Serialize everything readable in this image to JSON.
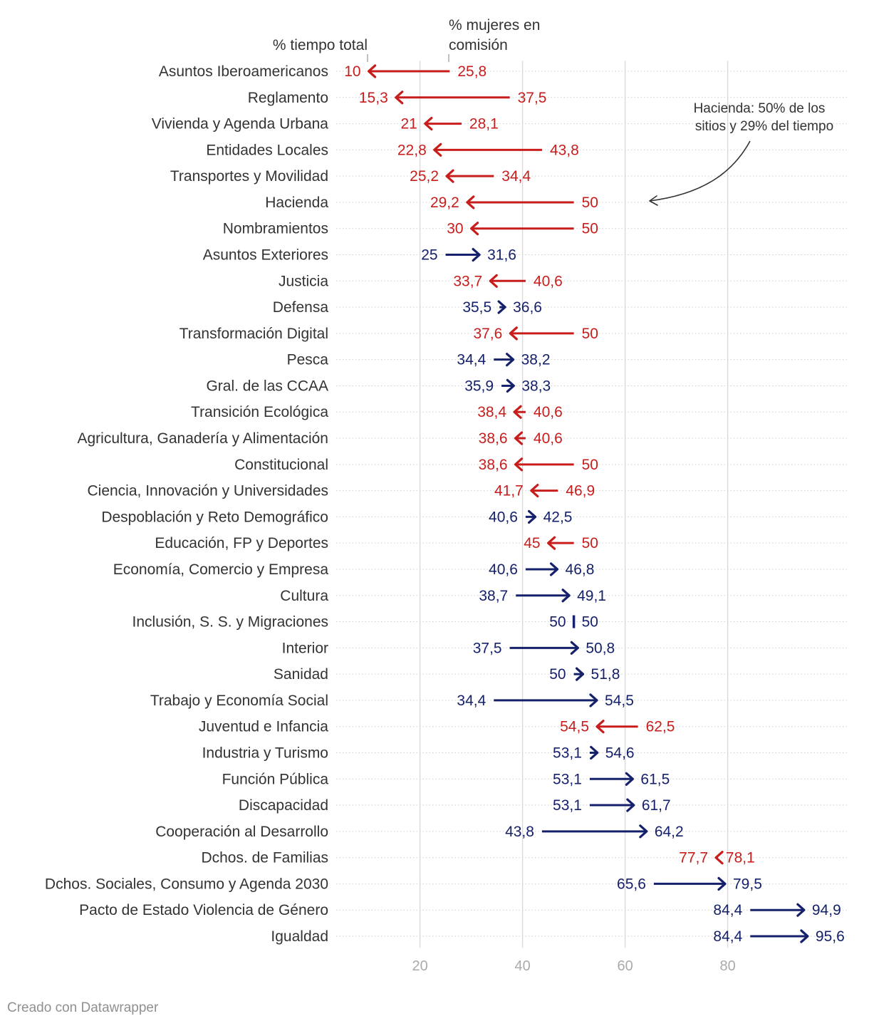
{
  "chart_data": {
    "type": "arrow-dot",
    "header": {
      "start_label": "% tiempo total",
      "end_label_line1": "% mujeres en",
      "end_label_line2": "comisión"
    },
    "annotation": {
      "line1": "Hacienda: 50% de los",
      "line2": "sitios y 29% del tiempo",
      "target": "Hacienda"
    },
    "x_axis": {
      "min": 0,
      "max": 100,
      "ticks": [
        20,
        40,
        60,
        80
      ]
    },
    "colors": {
      "decrease": "#c71e1d",
      "increase": "#15216b",
      "grid": "#d9d9d9",
      "tick_label": "#aaaaaa",
      "category_label": "#333333"
    },
    "rows": [
      {
        "category": "Asuntos Iberoamericanos",
        "start": 10,
        "end": 25.8,
        "start_label": "10",
        "end_label": "25,8",
        "direction": "down"
      },
      {
        "category": "Reglamento",
        "start": 15.3,
        "end": 37.5,
        "start_label": "15,3",
        "end_label": "37,5",
        "direction": "down"
      },
      {
        "category": "Vivienda y Agenda Urbana",
        "start": 21,
        "end": 28.1,
        "start_label": "21",
        "end_label": "28,1",
        "direction": "down"
      },
      {
        "category": "Entidades Locales",
        "start": 22.8,
        "end": 43.8,
        "start_label": "22,8",
        "end_label": "43,8",
        "direction": "down"
      },
      {
        "category": "Transportes y Movilidad",
        "start": 25.2,
        "end": 34.4,
        "start_label": "25,2",
        "end_label": "34,4",
        "direction": "down"
      },
      {
        "category": "Hacienda",
        "start": 29.2,
        "end": 50,
        "start_label": "29,2",
        "end_label": "50",
        "direction": "down"
      },
      {
        "category": "Nombramientos",
        "start": 30,
        "end": 50,
        "start_label": "30",
        "end_label": "50",
        "direction": "down"
      },
      {
        "category": "Asuntos Exteriores",
        "start": 25,
        "end": 31.6,
        "start_label": "25",
        "end_label": "31,6",
        "direction": "up"
      },
      {
        "category": "Justicia",
        "start": 33.7,
        "end": 40.6,
        "start_label": "33,7",
        "end_label": "40,6",
        "direction": "down"
      },
      {
        "category": "Defensa",
        "start": 35.5,
        "end": 36.6,
        "start_label": "35,5",
        "end_label": "36,6",
        "direction": "up"
      },
      {
        "category": "Transformación Digital",
        "start": 37.6,
        "end": 50,
        "start_label": "37,6",
        "end_label": "50",
        "direction": "down"
      },
      {
        "category": "Pesca",
        "start": 34.4,
        "end": 38.2,
        "start_label": "34,4",
        "end_label": "38,2",
        "direction": "up"
      },
      {
        "category": "Gral. de las CCAA",
        "start": 35.9,
        "end": 38.3,
        "start_label": "35,9",
        "end_label": "38,3",
        "direction": "up"
      },
      {
        "category": "Transición Ecológica",
        "start": 38.4,
        "end": 40.6,
        "start_label": "38,4",
        "end_label": "40,6",
        "direction": "down"
      },
      {
        "category": "Agricultura, Ganadería y Alimentación",
        "start": 38.6,
        "end": 40.6,
        "start_label": "38,6",
        "end_label": "40,6",
        "direction": "down"
      },
      {
        "category": "Constitucional",
        "start": 38.6,
        "end": 50,
        "start_label": "38,6",
        "end_label": "50",
        "direction": "down"
      },
      {
        "category": "Ciencia, Innovación y Universidades",
        "start": 41.7,
        "end": 46.9,
        "start_label": "41,7",
        "end_label": "46,9",
        "direction": "down"
      },
      {
        "category": "Despoblación y Reto Demográfico",
        "start": 40.6,
        "end": 42.5,
        "start_label": "40,6",
        "end_label": "42,5",
        "direction": "up"
      },
      {
        "category": "Educación, FP y Deportes",
        "start": 45,
        "end": 50,
        "start_label": "45",
        "end_label": "50",
        "direction": "down"
      },
      {
        "category": "Economía, Comercio y Empresa",
        "start": 40.6,
        "end": 46.8,
        "start_label": "40,6",
        "end_label": "46,8",
        "direction": "up"
      },
      {
        "category": "Cultura",
        "start": 38.7,
        "end": 49.1,
        "start_label": "38,7",
        "end_label": "49,1",
        "direction": "up"
      },
      {
        "category": "Inclusión, S. S. y Migraciones",
        "start": 50,
        "end": 50,
        "start_label": "50",
        "end_label": "50",
        "direction": "equal"
      },
      {
        "category": "Interior",
        "start": 37.5,
        "end": 50.8,
        "start_label": "37,5",
        "end_label": "50,8",
        "direction": "up"
      },
      {
        "category": "Sanidad",
        "start": 50,
        "end": 51.8,
        "start_label": "50",
        "end_label": "51,8",
        "direction": "up"
      },
      {
        "category": "Trabajo y Economía Social",
        "start": 34.4,
        "end": 54.5,
        "start_label": "34,4",
        "end_label": "54,5",
        "direction": "up"
      },
      {
        "category": "Juventud e Infancia",
        "start": 54.5,
        "end": 62.5,
        "start_label": "54,5",
        "end_label": "62,5",
        "direction": "down"
      },
      {
        "category": "Industria y Turismo",
        "start": 53.1,
        "end": 54.6,
        "start_label": "53,1",
        "end_label": "54,6",
        "direction": "up"
      },
      {
        "category": "Función Pública",
        "start": 53.1,
        "end": 61.5,
        "start_label": "53,1",
        "end_label": "61,5",
        "direction": "up"
      },
      {
        "category": "Discapacidad",
        "start": 53.1,
        "end": 61.7,
        "start_label": "53,1",
        "end_label": "61,7",
        "direction": "up"
      },
      {
        "category": "Cooperación al Desarrollo",
        "start": 43.8,
        "end": 64.2,
        "start_label": "43,8",
        "end_label": "64,2",
        "direction": "up"
      },
      {
        "category": "Dchos. de Familias",
        "start": 77.7,
        "end": 78.1,
        "start_label": "77,7",
        "end_label": "78,1",
        "direction": "down"
      },
      {
        "category": "Dchos. Sociales, Consumo y Agenda 2030",
        "start": 65.6,
        "end": 79.5,
        "start_label": "65,6",
        "end_label": "79,5",
        "direction": "up"
      },
      {
        "category": "Pacto de Estado Violencia de Género",
        "start": 84.4,
        "end": 94.9,
        "start_label": "84,4",
        "end_label": "94,9",
        "direction": "up"
      },
      {
        "category": "Igualdad",
        "start": 84.4,
        "end": 95.6,
        "start_label": "84,4",
        "end_label": "95,6",
        "direction": "up"
      }
    ]
  },
  "footer": {
    "credit": "Creado con Datawrapper"
  }
}
